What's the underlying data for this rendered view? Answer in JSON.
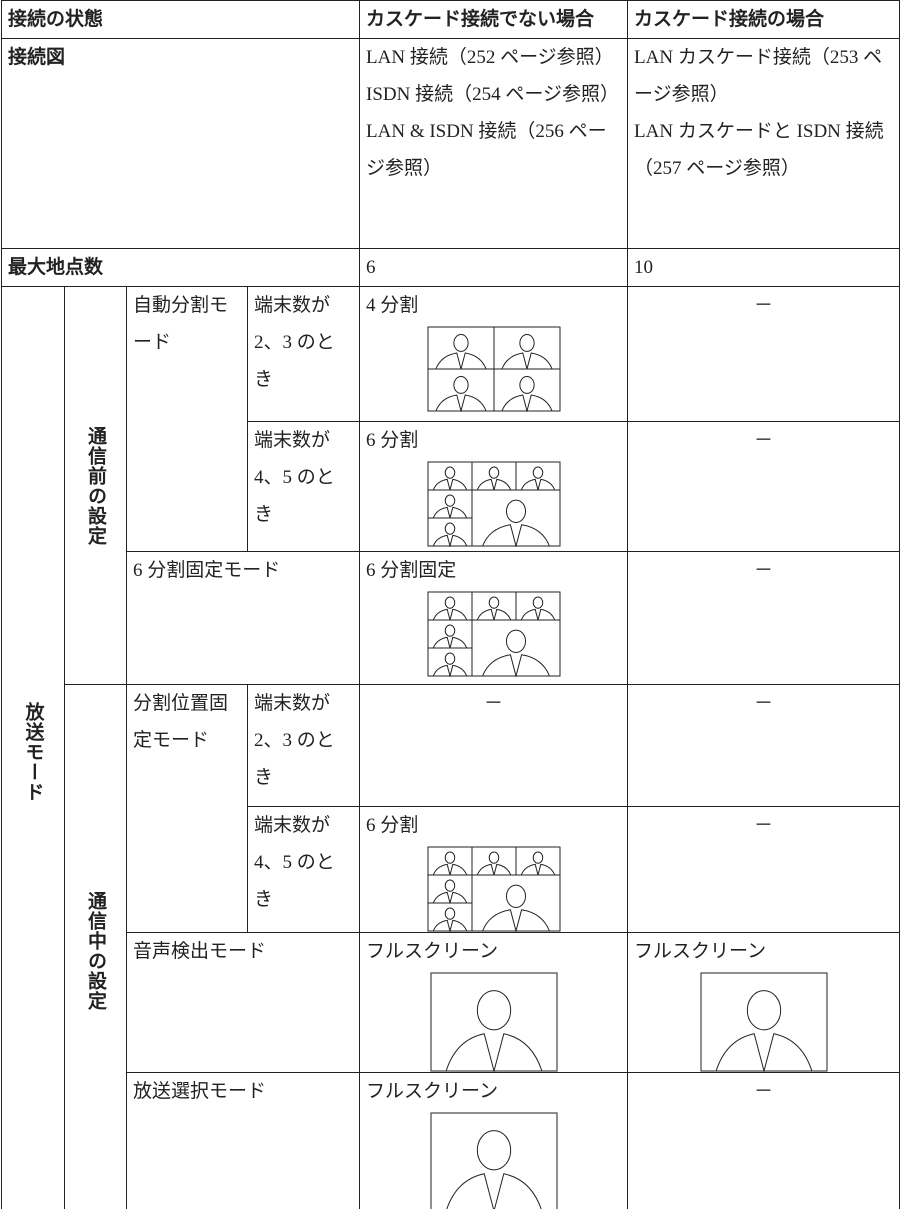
{
  "table": {
    "header": [
      "接続の状態",
      "カスケード接続でない場合",
      "カスケード接続の場合"
    ],
    "diagram": {
      "label": "接続図",
      "non_cascade": [
        "LAN 接続（252 ページ参照）",
        "ISDN 接続（254 ページ参照）",
        "LAN & ISDN 接続（256 ページ参照）"
      ],
      "cascade": [
        "LAN カスケード接続（253 ページ参照）",
        "LAN カスケードと ISDN 接続（257 ページ参照）"
      ]
    },
    "max_points": {
      "label": "最大地点数",
      "non_cascade": "6",
      "cascade": "10"
    },
    "broadcast": {
      "label": "放送モード",
      "groups": [
        {
          "label": "通信前の設定",
          "modes": [
            {
              "name": "自動分割モード",
              "cases": [
                {
                  "condition": "端末数が 2、3 のとき",
                  "non_cascade": "4 分割",
                  "cascade": "－"
                },
                {
                  "condition": "端末数が 4、5 のとき",
                  "non_cascade": "6 分割",
                  "cascade": "－"
                }
              ]
            },
            {
              "name": "6 分割固定モード",
              "non_cascade": "6 分割固定",
              "cascade": "－"
            }
          ]
        },
        {
          "label": "通信中の設定",
          "modes": [
            {
              "name": "分割位置固定モード",
              "cases": [
                {
                  "condition": "端末数が 2、3 のとき",
                  "non_cascade": "－",
                  "cascade": "－"
                },
                {
                  "condition": "端末数が 4、5 のとき",
                  "non_cascade": "6 分割",
                  "cascade": "－"
                }
              ]
            },
            {
              "name": "音声検出モード",
              "non_cascade": "フルスクリーン",
              "cascade": "フルスクリーン"
            },
            {
              "name": "放送選択モード",
              "non_cascade": "フルスクリーン",
              "cascade": "－"
            }
          ]
        }
      ]
    }
  }
}
